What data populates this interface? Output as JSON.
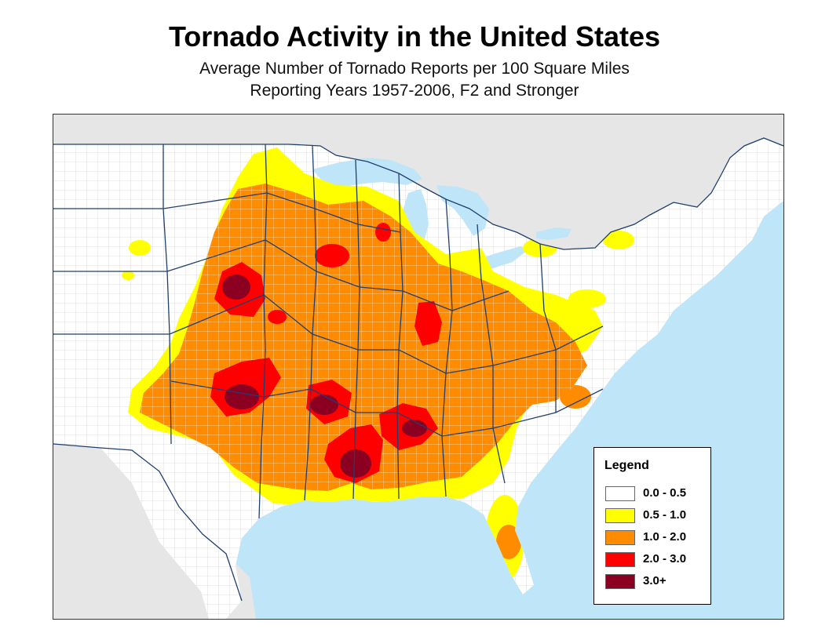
{
  "title": "Tornado Activity in the United States",
  "subtitle_1": "Average Number of Tornado Reports per 100 Square Miles",
  "subtitle_2": "Reporting Years 1957-2006, F2 and Stronger",
  "colors": {
    "ocean": "#bfe6f8",
    "lakes": "#bfe6f8",
    "foreign_land": "#e6e6e6",
    "land": "#ffffff",
    "state_border": "#1f3f6f",
    "county_line": "#b8b8b8"
  },
  "legend": {
    "title": "Legend",
    "items": [
      {
        "label": "0.0 - 0.5",
        "color": "#ffffff"
      },
      {
        "label": "0.5 - 1.0",
        "color": "#ffff00"
      },
      {
        "label": "1.0 - 2.0",
        "color": "#ff8c00"
      },
      {
        "label": "2.0 - 3.0",
        "color": "#ff0000"
      },
      {
        "label": "3.0+",
        "color": "#8b0020"
      }
    ]
  }
}
